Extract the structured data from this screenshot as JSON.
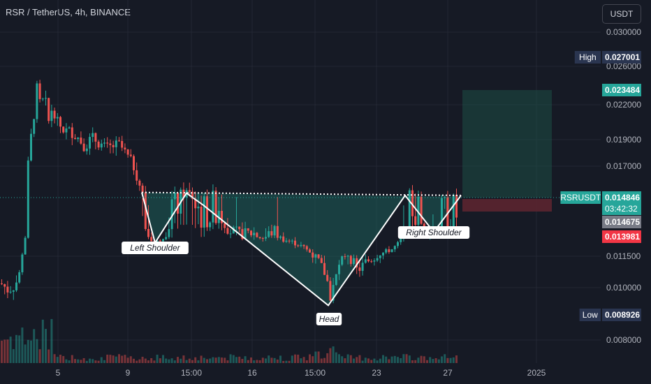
{
  "header": {
    "symbol": "RSR / TetherUS, 4h, BINANCE",
    "currency": "USDT"
  },
  "colors": {
    "up": "#26a69a",
    "down": "#ef5350",
    "pattern_fill": "#1e5f5a",
    "target_zone": "#1d4f45",
    "stop_zone": "#5b2530",
    "high_badge": "#2a3550",
    "price_badge": "#26a69a",
    "prev_badge": "#787b86",
    "stop_badge": "#f23645"
  },
  "chart_data": {
    "type": "candlestick",
    "symbol": "RSR / TetherUS",
    "timeframe": "4h",
    "exchange": "BINANCE",
    "y_ticks": [
      "0.030000",
      "0.026000",
      "0.022000",
      "0.019000",
      "0.017000",
      "0.011500",
      "0.010000",
      "0.008000"
    ],
    "y_tick_values": [
      0.03,
      0.026,
      0.022,
      0.019,
      0.017,
      0.0115,
      0.01,
      0.008
    ],
    "x_ticks": [
      "5",
      "9",
      "15:00",
      "16",
      "15:00",
      "23",
      "27",
      "2025"
    ],
    "axis_labels": [
      {
        "tag": "High",
        "value": "0.027001",
        "price": 0.027001
      },
      {
        "tag": "",
        "value": "0.023484",
        "price": 0.023484
      },
      {
        "tag": "RSRUSDT",
        "value": "0.014846",
        "price": 0.014846,
        "countdown": "03:42:32"
      },
      {
        "tag": "",
        "value": "0.014675",
        "price": 0.014675
      },
      {
        "tag": "",
        "value": "0.013981",
        "price": 0.013981
      },
      {
        "tag": "Low",
        "value": "0.008926",
        "price": 0.008926
      }
    ],
    "annotations": [
      "Left Shoulder",
      "Head",
      "Right Shoulder"
    ],
    "key_prices": {
      "left_shoulder": 0.0132,
      "head": 0.0093,
      "right_shoulder": 0.0142,
      "neckline_start": 0.0152,
      "neckline_end": 0.0149
    },
    "position": {
      "entry": 0.014846,
      "target": 0.023484,
      "stop": 0.013981
    },
    "grid": true,
    "legend": "none"
  }
}
